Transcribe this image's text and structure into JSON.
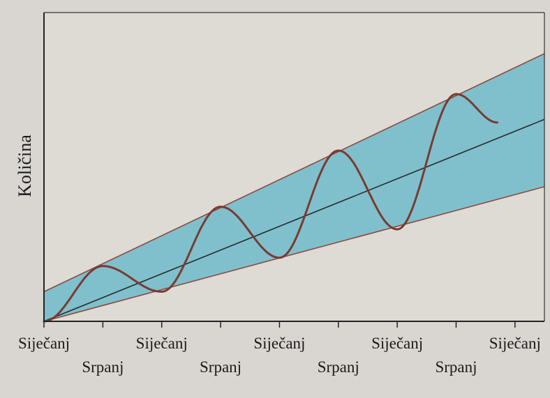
{
  "chart_data": {
    "type": "line",
    "title": "",
    "xlabel": "",
    "ylabel": "Količina",
    "x_ticks": [
      {
        "label": "Siječanj",
        "row": "top"
      },
      {
        "label": "Srpanj",
        "row": "bottom"
      },
      {
        "label": "Siječanj",
        "row": "top"
      },
      {
        "label": "Srpanj",
        "row": "bottom"
      },
      {
        "label": "Siječanj",
        "row": "top"
      },
      {
        "label": "Srpanj",
        "row": "bottom"
      },
      {
        "label": "Siječanj",
        "row": "top"
      },
      {
        "label": "Srpanj",
        "row": "bottom"
      },
      {
        "label": "Siječanj",
        "row": "top"
      }
    ],
    "xlim": [
      0,
      8.5
    ],
    "ylim": [
      0,
      100
    ],
    "series": [
      {
        "role": "trend",
        "x": [
          0,
          8.5
        ],
        "y": [
          0,
          65.4
        ]
      },
      {
        "role": "upper-bound",
        "x": [
          0,
          8.5
        ],
        "y": [
          9.6,
          86.7
        ]
      },
      {
        "role": "lower-bound",
        "x": [
          0,
          8.5
        ],
        "y": [
          0,
          43.6
        ]
      },
      {
        "role": "seasonal",
        "x": [
          0,
          1,
          2,
          3,
          4,
          5,
          6,
          7,
          7.7
        ],
        "y": [
          0,
          17.9,
          9.6,
          37.1,
          20.6,
          55.3,
          29.8,
          73.6,
          64.4
        ]
      }
    ],
    "grid": false,
    "legend": "none",
    "colors": {
      "band": "#7fc0cc",
      "seasonal": "#7a3a32",
      "trend": "#2a2a2a",
      "bound": "#8a4a3e",
      "axis": "#222222",
      "frame": "#333333"
    }
  }
}
